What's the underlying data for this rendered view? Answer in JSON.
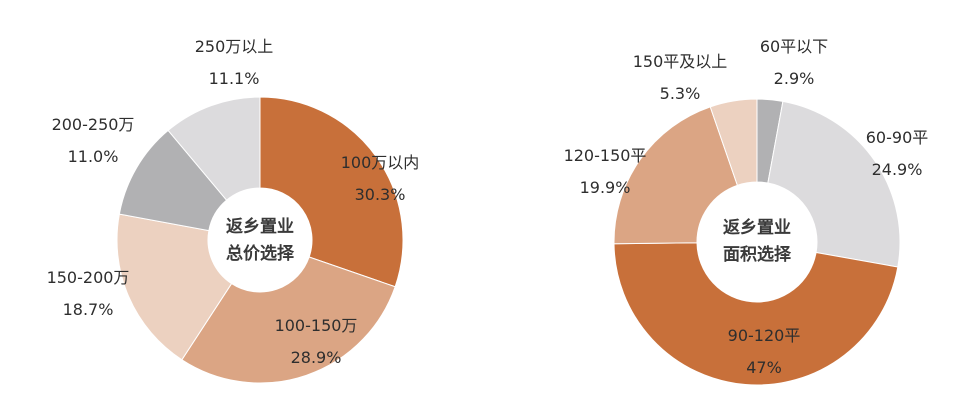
{
  "chart_data": [
    {
      "type": "pie",
      "donut": true,
      "title": "返乡置业总价选择",
      "center_text": [
        "返乡置业",
        "总价选择"
      ],
      "categories": [
        "100万以内",
        "100-150万",
        "150-200万",
        "200-250万",
        "250万以上"
      ],
      "values": [
        30.3,
        28.9,
        18.7,
        11.0,
        11.1
      ],
      "value_labels": [
        "30.3%",
        "28.9%",
        "18.7%",
        "11.0%",
        "11.1%"
      ],
      "colors": [
        "#c8703a",
        "#dba584",
        "#ecd1c0",
        "#b1b1b3",
        "#dcdbdd"
      ],
      "start_angle": "12 o'clock, clockwise"
    },
    {
      "type": "pie",
      "donut": true,
      "title": "返乡置业面积选择",
      "center_text": [
        "返乡置业",
        "面积选择"
      ],
      "categories": [
        "60平以下",
        "60-90平",
        "90-120平",
        "120-150平",
        "150平及以上"
      ],
      "values": [
        2.9,
        24.9,
        47,
        19.9,
        5.3
      ],
      "value_labels": [
        "2.9%",
        "24.9%",
        "47%",
        "19.9%",
        "5.3%"
      ],
      "colors": [
        "#b1b1b3",
        "#dcdbdd",
        "#c8703a",
        "#dba584",
        "#ecd1c0"
      ],
      "start_angle": "12 o'clock, clockwise"
    }
  ],
  "left": {
    "center_line1": "返乡置业",
    "center_line2": "总价选择",
    "labels": [
      {
        "name": "100万以内",
        "pct": "30.3%"
      },
      {
        "name": "100-150万",
        "pct": "28.9%"
      },
      {
        "name": "150-200万",
        "pct": "18.7%"
      },
      {
        "name": "200-250万",
        "pct": "11.0%"
      },
      {
        "name": "250万以上",
        "pct": "11.1%"
      }
    ]
  },
  "right": {
    "center_line1": "返乡置业",
    "center_line2": "面积选择",
    "labels": [
      {
        "name": "60平以下",
        "pct": "2.9%"
      },
      {
        "name": "60-90平",
        "pct": "24.9%"
      },
      {
        "name": "90-120平",
        "pct": "47%"
      },
      {
        "name": "120-150平",
        "pct": "19.9%"
      },
      {
        "name": "150平及以上",
        "pct": "5.3%"
      }
    ]
  }
}
